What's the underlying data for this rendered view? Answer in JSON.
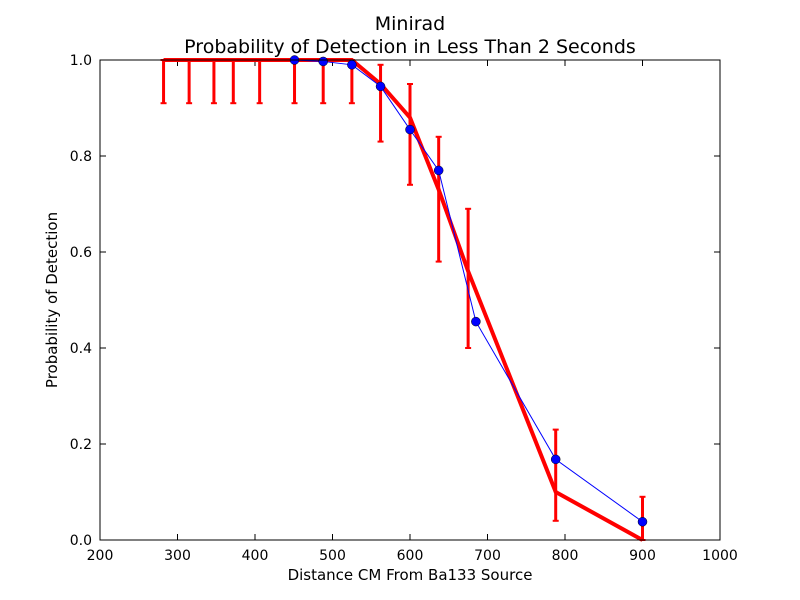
{
  "chart_data": {
    "type": "line",
    "title": "Minirad",
    "subtitle": "Probability of Detection in Less Than 2 Seconds",
    "xlabel": "Distance CM From Ba133 Source",
    "ylabel": "Probability of Detection",
    "xlim": [
      200,
      1000
    ],
    "ylim": [
      0.0,
      1.0
    ],
    "x_ticks": [
      200,
      300,
      400,
      500,
      600,
      700,
      800,
      900,
      1000
    ],
    "x_tick_labels": [
      "200",
      "300",
      "400",
      "500",
      "600",
      "700",
      "800",
      "900",
      "1000"
    ],
    "y_ticks": [
      0.0,
      0.2,
      0.4,
      0.6,
      0.8,
      1.0
    ],
    "y_tick_labels": [
      "0.0",
      "0.2",
      "0.4",
      "0.6",
      "0.8",
      "1.0"
    ],
    "grid": false,
    "legend": "none",
    "series": [
      {
        "style": "thick-line-with-error-bars",
        "color": "#ff0000",
        "points": [
          {
            "x": 282,
            "y": 1.0,
            "err_low": 0.09
          },
          {
            "x": 315,
            "y": 1.0,
            "err_low": 0.09
          },
          {
            "x": 347,
            "y": 1.0,
            "err_low": 0.09
          },
          {
            "x": 372,
            "y": 1.0,
            "err_low": 0.09
          },
          {
            "x": 406,
            "y": 1.0,
            "err_low": 0.09
          },
          {
            "x": 451,
            "y": 1.0,
            "err_low": 0.09
          },
          {
            "x": 488,
            "y": 1.0,
            "err_low": 0.09
          },
          {
            "x": 525,
            "y": 1.0,
            "err_low": 0.09
          },
          {
            "x": 562,
            "y": 0.95,
            "err_low": 0.12,
            "err_high": 0.04
          },
          {
            "x": 600,
            "y": 0.88,
            "err_low": 0.14,
            "err_high": 0.07
          },
          {
            "x": 637,
            "y": 0.73,
            "err_low": 0.15,
            "err_high": 0.11
          },
          {
            "x": 675,
            "y": 0.56,
            "err_low": 0.16,
            "err_high": 0.13
          },
          {
            "x": 788,
            "y": 0.1,
            "err_low": 0.06,
            "err_high": 0.13
          },
          {
            "x": 900,
            "y": 0.0,
            "err_low": 0.0,
            "err_high": 0.09
          }
        ]
      },
      {
        "style": "thin-line-with-markers",
        "color": "#0000ff",
        "points": [
          {
            "x": 451,
            "y": 1.0
          },
          {
            "x": 488,
            "y": 0.997
          },
          {
            "x": 525,
            "y": 0.99
          },
          {
            "x": 562,
            "y": 0.945
          },
          {
            "x": 600,
            "y": 0.855
          },
          {
            "x": 637,
            "y": 0.77
          },
          {
            "x": 685,
            "y": 0.455
          },
          {
            "x": 788,
            "y": 0.168
          },
          {
            "x": 900,
            "y": 0.038
          }
        ]
      }
    ]
  }
}
